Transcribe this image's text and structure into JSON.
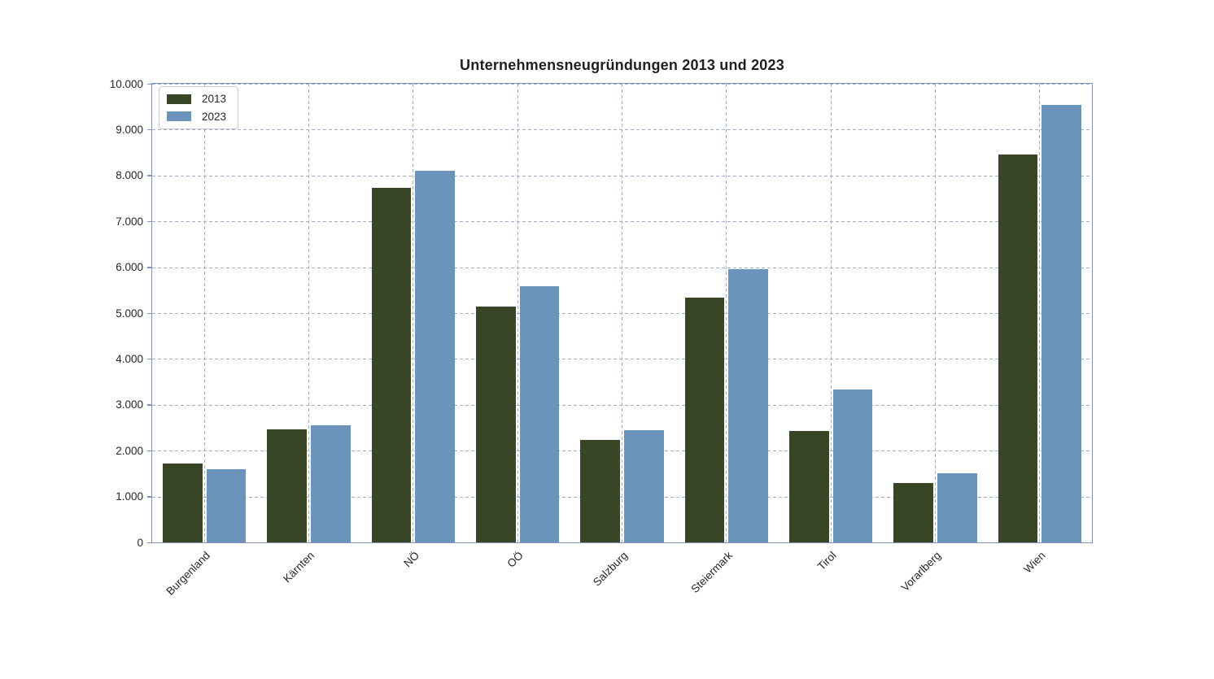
{
  "page": {
    "background": "#FFFFFF"
  },
  "colors": {
    "bar_2013": "#394527",
    "bar_2023": "#6B93BC",
    "spine": "#8193BB",
    "grid": "#9DAECE",
    "tick_text": "#262626",
    "title_text": "#1F1F1F",
    "legend_border": "#CCCCCC"
  },
  "chart_data": {
    "type": "bar",
    "title": "Unternehmensneugründungen 2013 und 2023",
    "categories": [
      "Burgenland",
      "Kärnten",
      "NÖ",
      "OÖ",
      "Salzburg",
      "Steiermark",
      "Tirol",
      "Vorarlberg",
      "Wien"
    ],
    "series": [
      {
        "name": "2013",
        "color": "#394527",
        "values": [
          1720,
          2470,
          7730,
          5140,
          2240,
          5330,
          2430,
          1300,
          8450
        ]
      },
      {
        "name": "2023",
        "color": "#6B93BC",
        "values": [
          1590,
          2560,
          8100,
          5590,
          2450,
          5950,
          3330,
          1510,
          9540
        ]
      }
    ],
    "xlabel": "",
    "ylabel": "",
    "ylim": [
      0,
      10000
    ],
    "ytick_step": 1000,
    "ytick_labels": [
      "0",
      "1.000",
      "2.000",
      "3.000",
      "4.000",
      "5.000",
      "6.000",
      "7.000",
      "8.000",
      "9.000",
      "10.000"
    ],
    "grid": "both-dashed",
    "legend_position": "upper-left",
    "bar_orientation": "vertical",
    "x_label_rotation_deg": 45
  }
}
